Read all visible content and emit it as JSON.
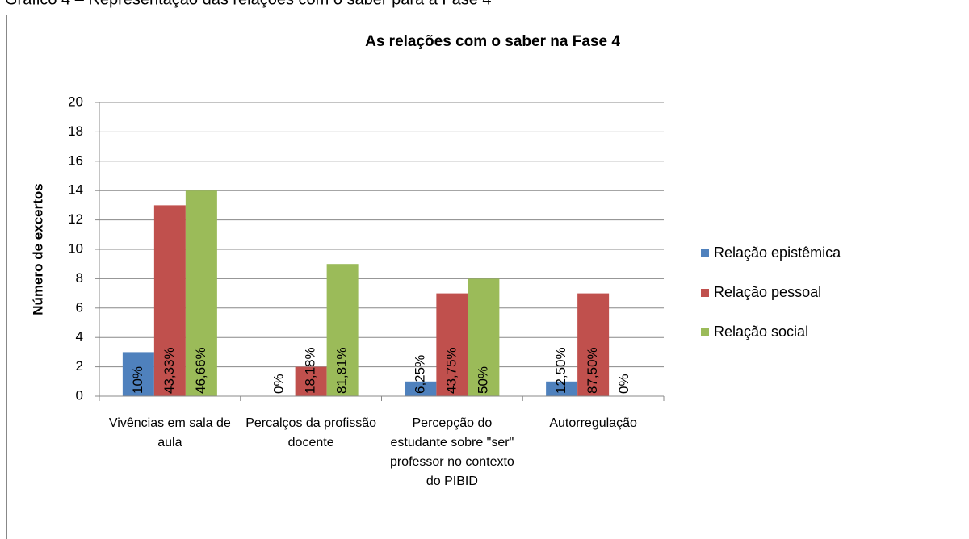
{
  "chart_data": {
    "type": "bar",
    "caption": "Gráfico 4 – Representação das relações com o saber para a Fase 4",
    "title": "As relações com o saber na Fase 4",
    "y_label": "Número de excertos",
    "categories": [
      "Vivências em sala de aula",
      "Percalços da profissão docente",
      "Percepção do estudante sobre \"ser\" professor no contexto do PIBID",
      "Autorregulação"
    ],
    "series": [
      {
        "name": "Relação epistêmica",
        "color": "#4f81bd",
        "values": [
          3,
          0,
          1,
          1
        ],
        "value_labels": [
          "10%",
          "0%",
          "6,25%",
          "12,50%"
        ]
      },
      {
        "name": "Relação pessoal",
        "color": "#c0504d",
        "values": [
          13,
          2,
          7,
          7
        ],
        "value_labels": [
          "43,33%",
          "18,18%",
          "43,75%",
          "87,50%"
        ]
      },
      {
        "name": "Relação social",
        "color": "#9bbb59",
        "values": [
          14,
          9,
          8,
          0
        ],
        "value_labels": [
          "46,66%",
          "81,81%",
          "50%",
          "0%"
        ]
      }
    ],
    "ylim": [
      0,
      20
    ],
    "yticks": [
      0,
      2,
      4,
      6,
      8,
      10,
      12,
      14,
      16,
      18,
      20
    ],
    "grid": true,
    "legend": "right"
  }
}
